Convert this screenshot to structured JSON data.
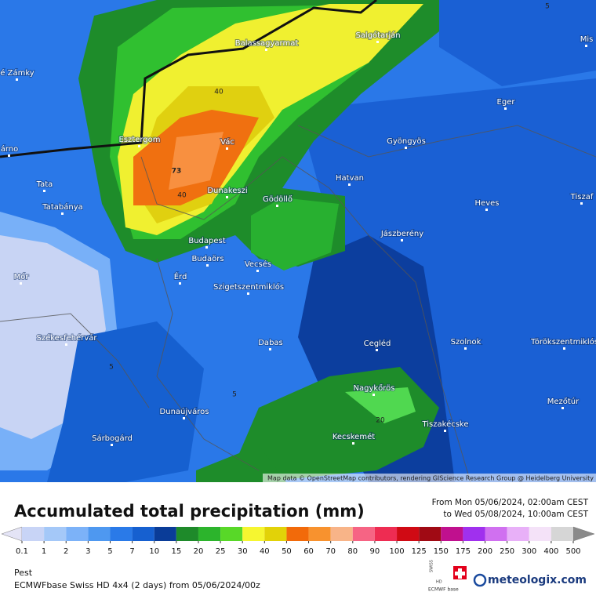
{
  "map": {
    "places": [
      "Balassagyarmat",
      "Salgótarján",
      "Mis",
      "é Zámky",
      "Eger",
      "árno",
      "Esztergom",
      "Vác",
      "Gyöngyös",
      "Tata",
      "Hatvan",
      "Dunakeszi",
      "Gödöllő",
      "Tiszaf",
      "Tatabánya",
      "Heves",
      "Jászberény",
      "Budapest",
      "Budaörs",
      "Vecsés",
      "Mór",
      "Érd",
      "Szigetszentmiklós",
      "Székesfehérvár",
      "Dabas",
      "Cegléd",
      "Szolnok",
      "Törökszentmiklós",
      "Nagykőrös",
      "Mezőtúr",
      "Dunaújváros",
      "Tiszakécske",
      "Sárbogárd",
      "Kecskemét"
    ],
    "contour_labels": [
      "40",
      "73",
      "40",
      "5",
      "5",
      "20",
      "5"
    ],
    "attribution": "Map data © OpenStreetMap contributors, rendering GIScience Research Group @ Heidelberg University"
  },
  "legend": {
    "title": "Accumulated total precipitation (mm)",
    "from": "From Mon 05/06/2024, 02:00am CEST",
    "to": "to Wed 05/08/2024, 10:00am CEST",
    "ticks": [
      0.1,
      1,
      2,
      3,
      5,
      7,
      10,
      15,
      20,
      25,
      30,
      40,
      50,
      60,
      70,
      80,
      90,
      100,
      125,
      150,
      175,
      200,
      250,
      300,
      400,
      500
    ],
    "below_color": "#e4e4f6",
    "above_color": "#8a8a8a",
    "colors": [
      "#c8d4f6",
      "#a4c8f8",
      "#7cb2f8",
      "#4e98f0",
      "#2a7ae8",
      "#1660d0",
      "#0a3c98",
      "#1e8a2a",
      "#2cb42c",
      "#58d828",
      "#f6f630",
      "#e2d208",
      "#f26a0a",
      "#f8922e",
      "#f8b488",
      "#f66484",
      "#ee2c52",
      "#d00a14",
      "#a00a14",
      "#c0108e",
      "#a030ee",
      "#d070f0",
      "#e8b0f8",
      "#f4e2f8",
      "#d6d6d6"
    ]
  },
  "footer": {
    "region": "Pest",
    "model": "ECMWFbase Swiss HD 4x4 (2 days) from 05/06/2024/00z",
    "logo_swiss": "SWISS",
    "logo_hd": "HD",
    "logo_ecmwf": "ECMWF base",
    "brand": "meteologix.com"
  }
}
